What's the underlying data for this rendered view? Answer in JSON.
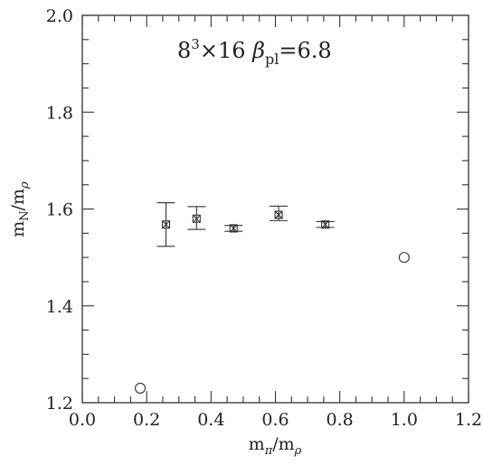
{
  "chart_data": {
    "type": "scatter",
    "title": "",
    "annotation": {
      "parts": [
        "8",
        "3",
        "×16 ",
        "β",
        "pl",
        "=6.8"
      ]
    },
    "xlabel": {
      "main": "m",
      "sub1": "π",
      "slash": "/m",
      "sub2": "ρ"
    },
    "ylabel": {
      "main": "m",
      "sub1": "N",
      "slash": "/m",
      "sub2": "ρ"
    },
    "xlim": [
      0.0,
      1.2
    ],
    "ylim": [
      1.2,
      2.0
    ],
    "x_ticks": [
      "0.0",
      "0.2",
      "0.4",
      "0.6",
      "0.8",
      "1.0",
      "1.2"
    ],
    "y_ticks": [
      "1.2",
      "1.4",
      "1.6",
      "1.8",
      "2.0"
    ],
    "grid": false,
    "series": [
      {
        "marker": "cross-box",
        "points": [
          {
            "x": 0.26,
            "y": 1.568,
            "yerr_low": 0.045,
            "yerr_high": 0.045
          },
          {
            "x": 0.355,
            "y": 1.58,
            "yerr_low": 0.022,
            "yerr_high": 0.025
          },
          {
            "x": 0.47,
            "y": 1.56,
            "yerr_low": 0.006,
            "yerr_high": 0.006
          },
          {
            "x": 0.61,
            "y": 1.588,
            "yerr_low": 0.012,
            "yerr_high": 0.018
          },
          {
            "x": 0.755,
            "y": 1.568,
            "yerr_low": 0.006,
            "yerr_high": 0.006
          }
        ]
      },
      {
        "marker": "open-circle",
        "points": [
          {
            "x": 0.18,
            "y": 1.23
          },
          {
            "x": 1.0,
            "y": 1.5
          }
        ]
      }
    ]
  }
}
